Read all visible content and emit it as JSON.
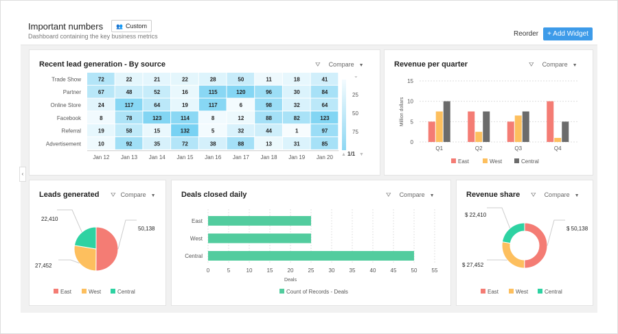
{
  "header": {
    "title": "Important numbers",
    "chip_label": "Custom",
    "chip_icon": "users-icon",
    "subtitle": "Dashboard containing the key business metrics",
    "reorder_label": "Reorder",
    "add_widget_label": "+ Add Widget"
  },
  "colors": {
    "accent": "#3d9be9",
    "east": "#f47c74",
    "west": "#fdbf5e",
    "central_gray": "#6b6b6b",
    "central_teal": "#2ed2a2",
    "deals": "#52cc9e",
    "heat": "#5cc8f0"
  },
  "compare_label": "Compare",
  "chart_data": [
    {
      "type": "heatmap",
      "title": "Recent lead generation - By source",
      "rows": [
        "Trade Show",
        "Partner",
        "Online Store",
        "Facebook",
        "Referral",
        "Advertisement"
      ],
      "columns": [
        "Jan 12",
        "Jan 13",
        "Jan 14",
        "Jan 15",
        "Jan 16",
        "Jan 17",
        "Jan 18",
        "Jan 19",
        "Jan 20"
      ],
      "values": [
        [
          72,
          22,
          21,
          22,
          28,
          50,
          11,
          18,
          41
        ],
        [
          67,
          48,
          52,
          16,
          115,
          120,
          96,
          30,
          84
        ],
        [
          24,
          117,
          64,
          19,
          117,
          6,
          98,
          32,
          64
        ],
        [
          8,
          78,
          123,
          114,
          8,
          12,
          88,
          82,
          123
        ],
        [
          19,
          58,
          15,
          132,
          5,
          32,
          44,
          1,
          97
        ],
        [
          10,
          92,
          35,
          72,
          38,
          88,
          13,
          31,
          85
        ]
      ],
      "legend_ticks": [
        "25",
        "50",
        "75"
      ],
      "pager": "1/1"
    },
    {
      "type": "bar",
      "title": "Revenue per quarter",
      "categories": [
        "Q1",
        "Q2",
        "Q3",
        "Q4"
      ],
      "ylabel": "Million dollars",
      "ylim": [
        0,
        15
      ],
      "yticks": [
        "0",
        "5",
        "10",
        "15"
      ],
      "grid": true,
      "legend": "bottom",
      "series": [
        {
          "name": "East",
          "values": [
            5,
            7.5,
            5,
            10
          ]
        },
        {
          "name": "West",
          "values": [
            7.5,
            2.5,
            6.5,
            1
          ]
        },
        {
          "name": "Central",
          "values": [
            10,
            7.5,
            7.5,
            5
          ]
        }
      ]
    },
    {
      "type": "pie",
      "title": "Leads generated",
      "legend": "bottom",
      "labels": [
        "East",
        "West",
        "Central"
      ],
      "values": [
        50138,
        27452,
        22410
      ],
      "value_labels": [
        "50,138",
        "27,452",
        "22,410"
      ]
    },
    {
      "type": "bar",
      "orientation": "horizontal",
      "title": "Deals closed daily",
      "categories": [
        "East",
        "West",
        "Central"
      ],
      "values": [
        25,
        25,
        50
      ],
      "xlabel": "Deals",
      "xlim": [
        0,
        55
      ],
      "xticks": [
        "0",
        "5",
        "10",
        "15",
        "20",
        "25",
        "30",
        "35",
        "40",
        "45",
        "50",
        "55"
      ],
      "series_name": "Count of Records - Deals",
      "grid": true,
      "legend": "bottom"
    },
    {
      "type": "pie",
      "variant": "donut",
      "title": "Revenue share",
      "legend": "bottom",
      "labels": [
        "East",
        "West",
        "Central"
      ],
      "values": [
        50138,
        27452,
        22410
      ],
      "value_labels": [
        "$ 50,138",
        "$ 27,452",
        "$ 22,410"
      ]
    }
  ]
}
